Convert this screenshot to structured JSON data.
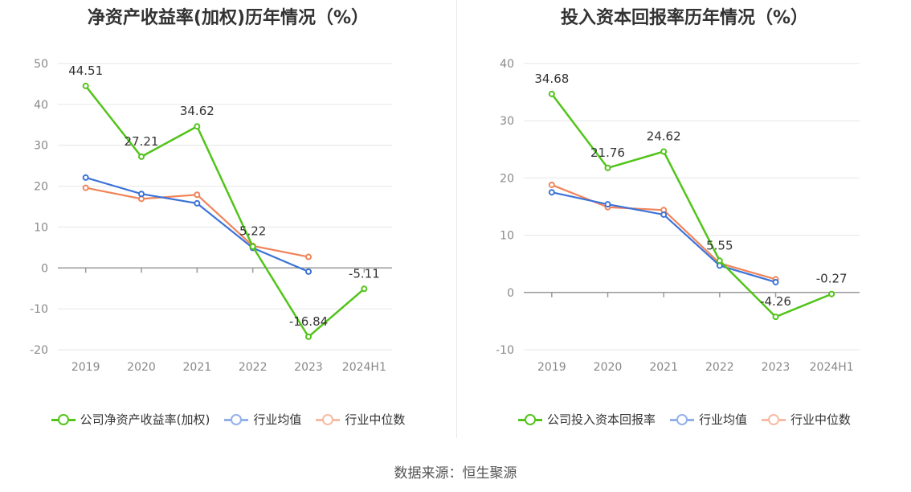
{
  "source": "数据来源：恒生聚源",
  "colors": {
    "company": "#52c41a",
    "avg": "#3b73d8",
    "median": "#f0845a",
    "grid": "#e6e6e6",
    "axis": "#999999"
  },
  "chart_data": [
    {
      "type": "line",
      "title": "净资产收益率(加权)历年情况（%）",
      "categories": [
        "2019",
        "2020",
        "2021",
        "2022",
        "2023",
        "2024H1"
      ],
      "ylim": [
        -20,
        50
      ],
      "yticks": [
        50,
        40,
        30,
        20,
        10,
        0,
        -10,
        -20
      ],
      "series": [
        {
          "name": "公司净资产收益率(加权)",
          "key": "company",
          "labeled": true,
          "values": [
            44.51,
            27.21,
            34.62,
            5.22,
            -16.84,
            -5.11
          ]
        },
        {
          "name": "行业均值",
          "key": "avg",
          "labeled": false,
          "values": [
            22.1,
            18.1,
            15.8,
            4.9,
            -0.9,
            null
          ]
        },
        {
          "name": "行业中位数",
          "key": "median",
          "labeled": false,
          "values": [
            19.6,
            16.9,
            17.9,
            5.4,
            2.7,
            null
          ]
        }
      ],
      "data_labels": [
        "44.51",
        "27.21",
        "34.62",
        "5.22",
        "-16.84",
        "-5.11"
      ]
    },
    {
      "type": "line",
      "title": "投入资本回报率历年情况（%）",
      "categories": [
        "2019",
        "2020",
        "2021",
        "2022",
        "2023",
        "2024H1"
      ],
      "ylim": [
        -10,
        40
      ],
      "yticks": [
        40,
        30,
        20,
        10,
        0,
        -10
      ],
      "series": [
        {
          "name": "公司投入资本回报率",
          "key": "company",
          "labeled": true,
          "values": [
            34.68,
            21.76,
            24.62,
            5.55,
            -4.26,
            -0.27
          ]
        },
        {
          "name": "行业均值",
          "key": "avg",
          "labeled": false,
          "values": [
            17.5,
            15.4,
            13.6,
            4.7,
            1.8,
            null
          ]
        },
        {
          "name": "行业中位数",
          "key": "median",
          "labeled": false,
          "values": [
            18.8,
            14.9,
            14.4,
            5.1,
            2.3,
            null
          ]
        }
      ],
      "data_labels": [
        "34.68",
        "21.76",
        "24.62",
        "5.55",
        "-4.26",
        "-0.27"
      ]
    }
  ]
}
